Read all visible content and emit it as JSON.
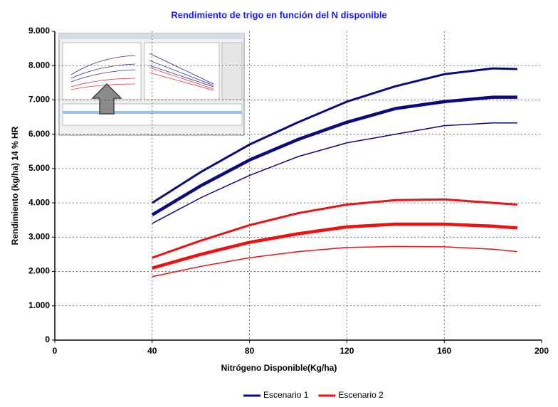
{
  "chart_data": {
    "type": "line",
    "title": "Rendimiento de trigo en función del N disponible",
    "x_label": "Nitrógeno Disponible(Kg/ha)",
    "y_label": "Rendimiento (kg/ha) 14 % HR",
    "x": [
      40,
      60,
      80,
      100,
      120,
      140,
      160,
      180,
      190
    ],
    "series": [
      {
        "name": "Escenario 1",
        "color": "#0a0a80",
        "lines": [
          {
            "values": [
              4000,
              4900,
              5700,
              6350,
              6950,
              7400,
              7750,
              7920,
              7900
            ]
          },
          {
            "values": [
              3650,
              4500,
              5250,
              5850,
              6350,
              6750,
              6950,
              7080,
              7080
            ]
          },
          {
            "values": [
              3400,
              4150,
              4800,
              5350,
              5750,
              6000,
              6250,
              6330,
              6330
            ]
          }
        ]
      },
      {
        "name": "Escenario 2",
        "color": "#ee1111",
        "lines": [
          {
            "values": [
              2400,
              2900,
              3350,
              3700,
              3950,
              4080,
              4100,
              4000,
              3950
            ]
          },
          {
            "values": [
              2100,
              2500,
              2850,
              3100,
              3300,
              3380,
              3380,
              3320,
              3270
            ]
          },
          {
            "values": [
              1850,
              2150,
              2400,
              2580,
              2700,
              2730,
              2720,
              2650,
              2580
            ]
          }
        ]
      }
    ],
    "xlim": [
      0,
      200
    ],
    "xticks": [
      0,
      40,
      80,
      120,
      160,
      200
    ],
    "ylim": [
      0,
      9000
    ],
    "yticks": [
      0,
      {
        "value": 1000,
        "label": "1.000"
      },
      {
        "value": 2000,
        "label": "2.000"
      },
      {
        "value": 3000,
        "label": "3.000"
      },
      {
        "value": 4000,
        "label": "4.000"
      },
      {
        "value": 5000,
        "label": "5.000"
      },
      {
        "value": 6000,
        "label": "6.000"
      },
      {
        "value": 7000,
        "label": "7.000"
      },
      {
        "value": 8000,
        "label": "8.000"
      },
      {
        "value": 9000,
        "label": "9.000"
      }
    ],
    "grid": true
  }
}
